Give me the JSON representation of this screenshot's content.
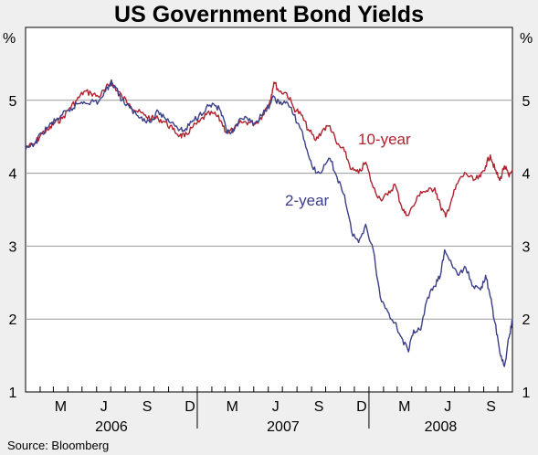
{
  "chart_data": {
    "type": "line",
    "title": "US Government Bond Yields",
    "y_unit_left": "%",
    "y_unit_right": "%",
    "ylim": [
      1,
      6
    ],
    "yticks": [
      "1",
      "2",
      "3",
      "4",
      "5"
    ],
    "grid": true,
    "x_month_ticks": [
      "M",
      "J",
      "S",
      "D",
      "M",
      "J",
      "S",
      "D",
      "M",
      "J",
      "S"
    ],
    "x_year_labels": [
      "2006",
      "2007",
      "2008"
    ],
    "source": "Source: Bloomberg",
    "series": [
      {
        "name": "10-year",
        "color": "#b0222e",
        "points": [
          [
            "2006-01-01",
            4.35
          ],
          [
            "2006-01-20",
            4.4
          ],
          [
            "2006-02-05",
            4.55
          ],
          [
            "2006-02-20",
            4.6
          ],
          [
            "2006-03-05",
            4.7
          ],
          [
            "2006-03-20",
            4.75
          ],
          [
            "2006-04-05",
            4.9
          ],
          [
            "2006-04-20",
            5.0
          ],
          [
            "2006-05-05",
            5.12
          ],
          [
            "2006-05-20",
            5.1
          ],
          [
            "2006-06-05",
            5.05
          ],
          [
            "2006-06-20",
            5.15
          ],
          [
            "2006-07-01",
            5.25
          ],
          [
            "2006-07-10",
            5.18
          ],
          [
            "2006-07-25",
            5.05
          ],
          [
            "2006-08-10",
            4.95
          ],
          [
            "2006-08-25",
            4.85
          ],
          [
            "2006-09-10",
            4.8
          ],
          [
            "2006-09-25",
            4.75
          ],
          [
            "2006-10-10",
            4.75
          ],
          [
            "2006-10-25",
            4.7
          ],
          [
            "2006-11-10",
            4.6
          ],
          [
            "2006-11-25",
            4.52
          ],
          [
            "2006-12-05",
            4.5
          ],
          [
            "2006-12-20",
            4.62
          ],
          [
            "2007-01-05",
            4.7
          ],
          [
            "2007-01-20",
            4.8
          ],
          [
            "2007-02-05",
            4.82
          ],
          [
            "2007-02-20",
            4.72
          ],
          [
            "2007-03-05",
            4.55
          ],
          [
            "2007-03-20",
            4.6
          ],
          [
            "2007-04-05",
            4.7
          ],
          [
            "2007-04-20",
            4.7
          ],
          [
            "2007-05-05",
            4.68
          ],
          [
            "2007-05-20",
            4.8
          ],
          [
            "2007-06-05",
            5.0
          ],
          [
            "2007-06-13",
            5.25
          ],
          [
            "2007-06-25",
            5.12
          ],
          [
            "2007-07-10",
            5.1
          ],
          [
            "2007-07-25",
            4.9
          ],
          [
            "2007-08-10",
            4.8
          ],
          [
            "2007-08-25",
            4.6
          ],
          [
            "2007-09-10",
            4.45
          ],
          [
            "2007-09-25",
            4.6
          ],
          [
            "2007-10-10",
            4.65
          ],
          [
            "2007-10-25",
            4.4
          ],
          [
            "2007-11-10",
            4.3
          ],
          [
            "2007-11-25",
            4.05
          ],
          [
            "2007-12-10",
            4.0
          ],
          [
            "2007-12-25",
            4.15
          ],
          [
            "2008-01-10",
            3.8
          ],
          [
            "2008-01-25",
            3.65
          ],
          [
            "2008-02-10",
            3.7
          ],
          [
            "2008-02-25",
            3.85
          ],
          [
            "2008-03-10",
            3.55
          ],
          [
            "2008-03-20",
            3.42
          ],
          [
            "2008-04-05",
            3.55
          ],
          [
            "2008-04-20",
            3.75
          ],
          [
            "2008-05-05",
            3.75
          ],
          [
            "2008-05-20",
            3.8
          ],
          [
            "2008-06-01",
            3.55
          ],
          [
            "2008-06-12",
            3.4
          ],
          [
            "2008-06-25",
            3.65
          ],
          [
            "2008-07-10",
            3.9
          ],
          [
            "2008-07-25",
            4.0
          ],
          [
            "2008-08-10",
            3.9
          ],
          [
            "2008-08-25",
            3.95
          ],
          [
            "2008-09-05",
            4.1
          ],
          [
            "2008-09-15",
            4.25
          ],
          [
            "2008-09-25",
            4.05
          ],
          [
            "2008-10-05",
            3.9
          ],
          [
            "2008-10-15",
            4.1
          ],
          [
            "2008-10-25",
            3.95
          ],
          [
            "2008-11-01",
            4.05
          ]
        ]
      },
      {
        "name": "2-year",
        "color": "#3b3f87",
        "points": [
          [
            "2006-01-01",
            4.32
          ],
          [
            "2006-01-20",
            4.4
          ],
          [
            "2006-02-05",
            4.55
          ],
          [
            "2006-02-20",
            4.65
          ],
          [
            "2006-03-05",
            4.72
          ],
          [
            "2006-03-20",
            4.8
          ],
          [
            "2006-04-05",
            4.85
          ],
          [
            "2006-04-20",
            4.95
          ],
          [
            "2006-05-05",
            4.98
          ],
          [
            "2006-05-20",
            4.98
          ],
          [
            "2006-06-05",
            4.98
          ],
          [
            "2006-06-20",
            5.12
          ],
          [
            "2006-07-01",
            5.25
          ],
          [
            "2006-07-10",
            5.2
          ],
          [
            "2006-07-25",
            5.0
          ],
          [
            "2006-08-10",
            4.9
          ],
          [
            "2006-08-25",
            4.8
          ],
          [
            "2006-09-10",
            4.75
          ],
          [
            "2006-09-25",
            4.7
          ],
          [
            "2006-10-10",
            4.85
          ],
          [
            "2006-10-25",
            4.75
          ],
          [
            "2006-11-10",
            4.7
          ],
          [
            "2006-11-25",
            4.6
          ],
          [
            "2006-12-05",
            4.58
          ],
          [
            "2006-12-20",
            4.7
          ],
          [
            "2007-01-05",
            4.8
          ],
          [
            "2007-01-20",
            4.9
          ],
          [
            "2007-02-05",
            4.95
          ],
          [
            "2007-02-20",
            4.85
          ],
          [
            "2007-03-05",
            4.55
          ],
          [
            "2007-03-20",
            4.58
          ],
          [
            "2007-04-05",
            4.75
          ],
          [
            "2007-04-20",
            4.72
          ],
          [
            "2007-05-05",
            4.7
          ],
          [
            "2007-05-20",
            4.8
          ],
          [
            "2007-06-05",
            4.95
          ],
          [
            "2007-06-13",
            5.05
          ],
          [
            "2007-06-25",
            4.95
          ],
          [
            "2007-07-10",
            4.98
          ],
          [
            "2007-07-25",
            4.8
          ],
          [
            "2007-08-10",
            4.6
          ],
          [
            "2007-08-25",
            4.25
          ],
          [
            "2007-09-10",
            4.0
          ],
          [
            "2007-09-25",
            4.05
          ],
          [
            "2007-10-10",
            4.2
          ],
          [
            "2007-10-25",
            3.95
          ],
          [
            "2007-11-10",
            3.7
          ],
          [
            "2007-11-25",
            3.2
          ],
          [
            "2007-12-10",
            3.05
          ],
          [
            "2007-12-25",
            3.3
          ],
          [
            "2008-01-10",
            2.95
          ],
          [
            "2008-01-25",
            2.3
          ],
          [
            "2008-02-10",
            2.1
          ],
          [
            "2008-02-25",
            1.95
          ],
          [
            "2008-03-10",
            1.75
          ],
          [
            "2008-03-25",
            1.55
          ],
          [
            "2008-04-05",
            1.85
          ],
          [
            "2008-04-20",
            1.85
          ],
          [
            "2008-05-05",
            2.3
          ],
          [
            "2008-05-20",
            2.45
          ],
          [
            "2008-06-01",
            2.6
          ],
          [
            "2008-06-10",
            2.95
          ],
          [
            "2008-06-25",
            2.75
          ],
          [
            "2008-07-10",
            2.6
          ],
          [
            "2008-07-25",
            2.7
          ],
          [
            "2008-08-10",
            2.45
          ],
          [
            "2008-08-25",
            2.4
          ],
          [
            "2008-09-05",
            2.6
          ],
          [
            "2008-09-15",
            2.3
          ],
          [
            "2008-09-25",
            1.95
          ],
          [
            "2008-10-05",
            1.55
          ],
          [
            "2008-10-15",
            1.35
          ],
          [
            "2008-10-25",
            1.75
          ],
          [
            "2008-11-01",
            2.0
          ]
        ]
      }
    ]
  }
}
